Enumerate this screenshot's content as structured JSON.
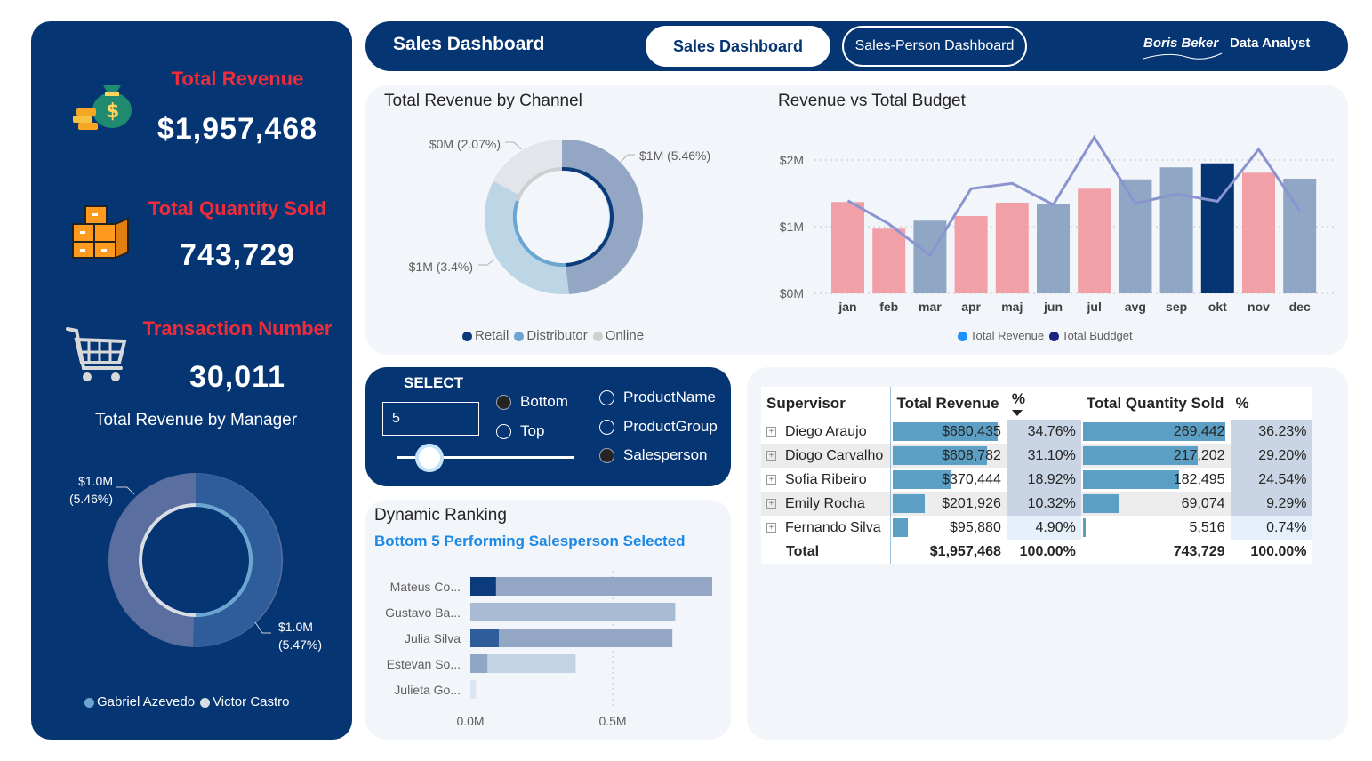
{
  "kpis": {
    "revenue": {
      "title": "Total Revenue",
      "value": "$1,957,468",
      "icon": "money-bag-icon"
    },
    "quantity": {
      "title": "Total Quantity Sold",
      "value": "743,729",
      "icon": "boxes-icon"
    },
    "transactions": {
      "title": "Transaction Number",
      "value": "30,011",
      "icon": "shopping-cart-icon"
    }
  },
  "manager_chart": {
    "title": "Total Revenue by Manager",
    "label_top": [
      "$1.0M",
      "(5.46%)"
    ],
    "label_bottom": [
      "$1.0M",
      "(5.47%)"
    ],
    "legend": [
      "Gabriel Azevedo",
      "Victor Castro"
    ]
  },
  "header": {
    "title": "Sales Dashboard",
    "tab_active": "Sales Dashboard",
    "tab_other": "Sales-Person Dashboard",
    "brand_name": "Boris Beker",
    "brand_role": "Data Analyst"
  },
  "channel_chart": {
    "title": "Total Revenue by Channel",
    "label_online": "$0M (2.07%)",
    "label_retail": "$1M (5.46%)",
    "label_distributor": "$1M (3.4%)",
    "legend": [
      "Retail",
      "Distributor",
      "Online"
    ]
  },
  "budget_chart": {
    "title": "Revenue vs Total Budget",
    "y_ticks": [
      "$2M",
      "$1M",
      "$0M"
    ],
    "legend": [
      "Total Revenue",
      "Total Buddget"
    ]
  },
  "select": {
    "title": "SELECT",
    "input_value": "5",
    "opt_bottom": "Bottom",
    "opt_top": "Top",
    "opt_product_name": "ProductName",
    "opt_product_group": "ProductGroup",
    "opt_salesperson": "Salesperson",
    "slider_level": 0.18
  },
  "ranking": {
    "title": "Dynamic Ranking",
    "subtitle": "Bottom 5 Performing Salesperson Selected",
    "x_ticks": [
      "0.0M",
      "0.5M"
    ]
  },
  "table": {
    "headers": [
      "Supervisor",
      "Total Revenue",
      "%",
      "Total Quantity Sold",
      "%"
    ],
    "rows": [
      {
        "name": "Diego Araujo",
        "revenue": "$680,435",
        "rev_pct": "34.76%",
        "qty": "269,442",
        "qty_pct": "36.23%",
        "rev_frac": 0.3476,
        "qty_frac": 0.3623
      },
      {
        "name": "Diogo Carvalho",
        "revenue": "$608,782",
        "rev_pct": "31.10%",
        "qty": "217,202",
        "qty_pct": "29.20%",
        "rev_frac": 0.311,
        "qty_frac": 0.292
      },
      {
        "name": "Sofia Ribeiro",
        "revenue": "$370,444",
        "rev_pct": "18.92%",
        "qty": "182,495",
        "qty_pct": "24.54%",
        "rev_frac": 0.1892,
        "qty_frac": 0.2454
      },
      {
        "name": "Emily Rocha",
        "revenue": "$201,926",
        "rev_pct": "10.32%",
        "qty": "69,074",
        "qty_pct": "9.29%",
        "rev_frac": 0.1032,
        "qty_frac": 0.0929
      },
      {
        "name": "Fernando Silva",
        "revenue": "$95,880",
        "rev_pct": "4.90%",
        "qty": "5,516",
        "qty_pct": "0.74%",
        "rev_frac": 0.049,
        "qty_frac": 0.0074
      }
    ],
    "total": {
      "name": "Total",
      "revenue": "$1,957,468",
      "rev_pct": "100.00%",
      "qty": "743,729",
      "qty_pct": "100.00%"
    }
  },
  "colors": {
    "navy": "#063574",
    "accent_red": "#ef2d3a",
    "bar_pink": "#f2a0a8",
    "bar_blue": "#8fa6c4",
    "line": "#8a94cf"
  },
  "chart_data": [
    {
      "type": "pie",
      "title": "Total Revenue by Channel",
      "categories": [
        "Retail",
        "Distributor",
        "Online"
      ],
      "values": [
        5.46,
        3.4,
        2.07
      ]
    },
    {
      "type": "bar",
      "title": "Revenue vs Total Budget",
      "categories": [
        "jan",
        "feb",
        "mar",
        "apr",
        "maj",
        "jun",
        "jul",
        "avg",
        "sep",
        "okt",
        "nov",
        "dec"
      ],
      "ylim": [
        0,
        2.2
      ],
      "series": [
        {
          "name": "Total Revenue",
          "values": [
            1.37,
            0.97,
            1.09,
            1.16,
            1.36,
            1.34,
            1.57,
            1.71,
            1.89,
            1.95,
            1.81,
            1.72
          ],
          "colors": [
            "pink",
            "pink",
            "blue",
            "pink",
            "pink",
            "blue",
            "pink",
            "blue",
            "blue",
            "navy",
            "pink",
            "blue"
          ]
        },
        {
          "name": "Total Buddget",
          "type": "line",
          "values": [
            1.39,
            1.04,
            0.57,
            1.57,
            1.65,
            1.33,
            2.34,
            1.35,
            1.49,
            1.38,
            2.16,
            1.24
          ]
        }
      ]
    },
    {
      "type": "bar",
      "title": "Dynamic Ranking",
      "categories": [
        "Mateus Co...",
        "Gustavo Ba...",
        "Julia Silva",
        "Estevan So...",
        "Julieta Go..."
      ],
      "xlim": [
        0,
        0.9
      ],
      "series": [
        {
          "values": [
            0.85,
            0.72,
            0.71,
            0.37,
            0.02
          ]
        },
        {
          "values": [
            0.09,
            0,
            0.1,
            0.06,
            0
          ]
        }
      ]
    },
    {
      "type": "pie",
      "title": "Total Revenue by Manager",
      "categories": [
        "Gabriel Azevedo",
        "Victor Castro"
      ],
      "values": [
        5.46,
        5.47
      ]
    }
  ]
}
